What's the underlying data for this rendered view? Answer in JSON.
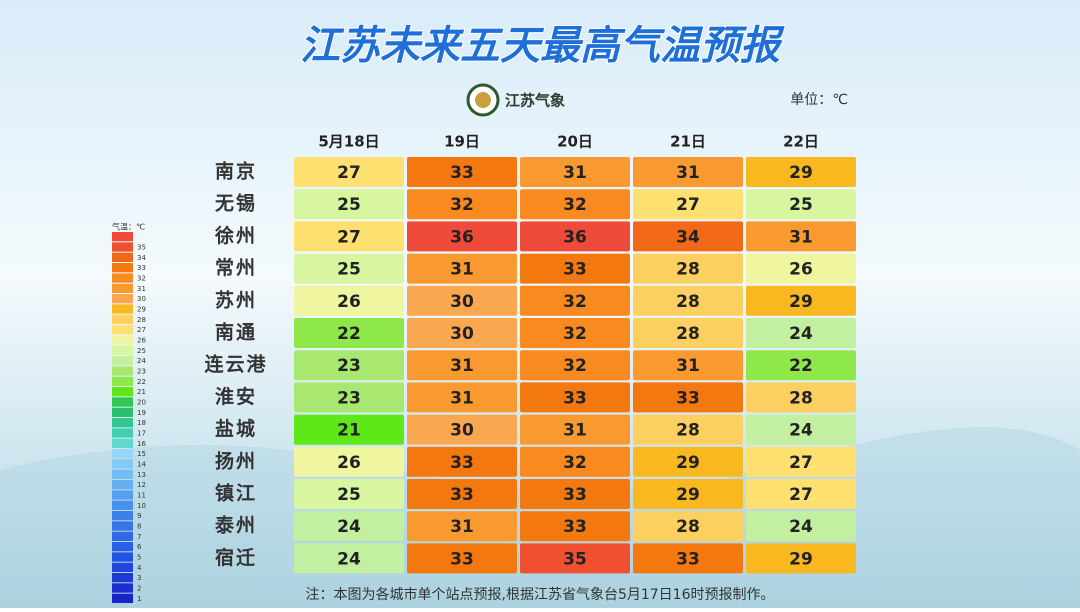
{
  "title": "江苏未来五天最高气温预报",
  "logo_text": "江苏气象",
  "unit": "单位：℃",
  "table": {
    "columns": [
      "5月18日",
      "19日",
      "20日",
      "21日",
      "22日"
    ],
    "rows": [
      {
        "city": "南京",
        "values": [
          27,
          33,
          31,
          31,
          29
        ]
      },
      {
        "city": "无锡",
        "values": [
          25,
          32,
          32,
          27,
          25
        ]
      },
      {
        "city": "徐州",
        "values": [
          27,
          36,
          36,
          34,
          31
        ]
      },
      {
        "city": "常州",
        "values": [
          25,
          31,
          33,
          28,
          26
        ]
      },
      {
        "city": "苏州",
        "values": [
          26,
          30,
          32,
          28,
          29
        ]
      },
      {
        "city": "南通",
        "values": [
          22,
          30,
          32,
          28,
          24
        ]
      },
      {
        "city": "连云港",
        "values": [
          23,
          31,
          32,
          31,
          22
        ]
      },
      {
        "city": "淮安",
        "values": [
          23,
          31,
          33,
          33,
          28
        ]
      },
      {
        "city": "盐城",
        "values": [
          21,
          30,
          31,
          28,
          24
        ]
      },
      {
        "city": "扬州",
        "values": [
          26,
          33,
          32,
          29,
          27
        ]
      },
      {
        "city": "镇江",
        "values": [
          25,
          33,
          33,
          29,
          27
        ]
      },
      {
        "city": "泰州",
        "values": [
          24,
          31,
          33,
          28,
          24
        ]
      },
      {
        "city": "宿迁",
        "values": [
          24,
          33,
          35,
          33,
          29
        ]
      }
    ]
  },
  "legend": {
    "title": "气温：℃",
    "ticks": [
      1,
      2,
      3,
      4,
      5,
      6,
      7,
      8,
      9,
      10,
      11,
      12,
      13,
      14,
      15,
      16,
      17,
      18,
      19,
      20,
      21,
      22,
      23,
      24,
      25,
      26,
      27,
      28,
      29,
      30,
      31,
      32,
      33,
      34,
      35
    ],
    "colors": [
      "#1a22c8",
      "#1c2ed0",
      "#1e3ad6",
      "#2046dc",
      "#2452e0",
      "#2a5ee4",
      "#3068e6",
      "#3674e8",
      "#3c80ea",
      "#4890ee",
      "#56a0f0",
      "#64aef2",
      "#74bcf4",
      "#84caf6",
      "#94d6f6",
      "#60d8d0",
      "#40d0b0",
      "#30c890",
      "#28c070",
      "#30c850",
      "#5ee81a",
      "#8fe84a",
      "#a8e870",
      "#c2f0a0",
      "#d8f5a0",
      "#f0f5a0",
      "#fde070",
      "#fcd060",
      "#f9b820",
      "#f9a850",
      "#f99a30",
      "#f98a20",
      "#f37810",
      "#f06818",
      "#f05030",
      "#f04a3a"
    ]
  },
  "note": "注：本图为各城市单个站点预报,根据江苏省气象台5月17日16时预报制作。"
}
